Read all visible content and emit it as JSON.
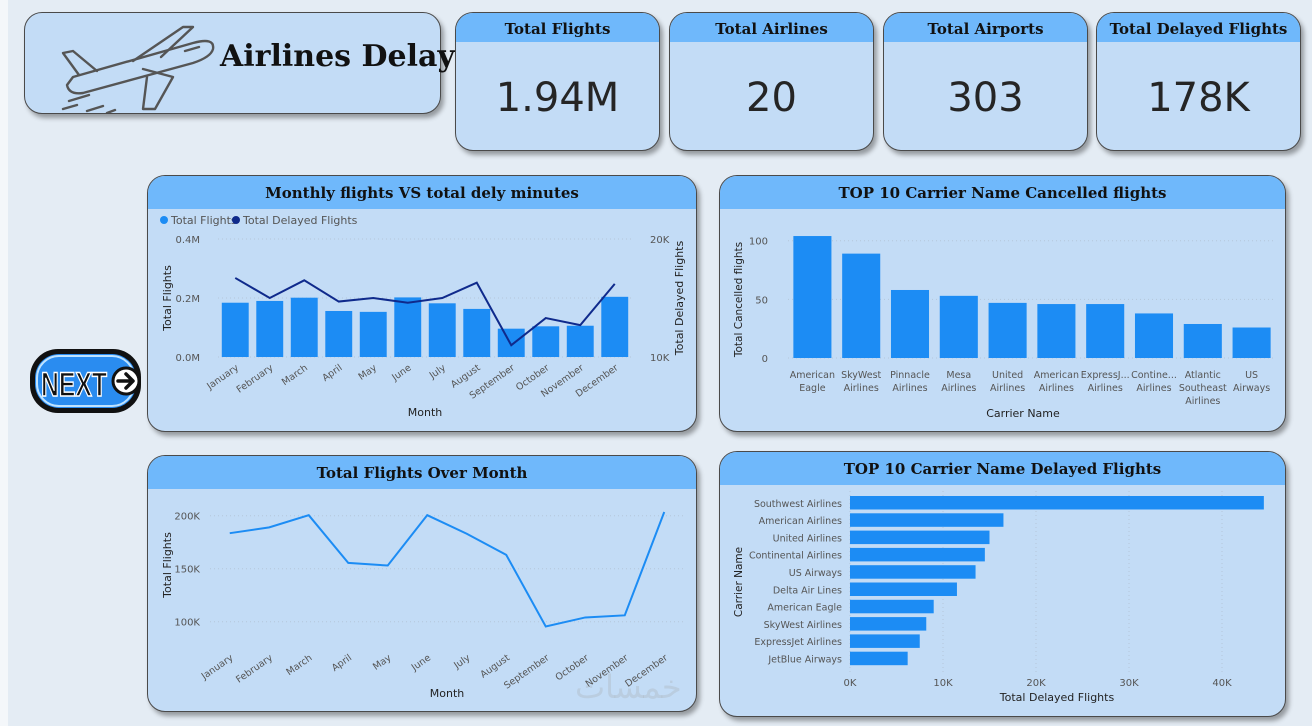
{
  "title": "Airlines Delay",
  "kpis": [
    {
      "label": "Total Flights",
      "value": "1.94M"
    },
    {
      "label": "Total Airlines",
      "value": "20"
    },
    {
      "label": "Total Airports",
      "value": "303"
    },
    {
      "label": "Total Delayed Flights",
      "value": "178K"
    }
  ],
  "next_button": {
    "label": "NEXT"
  },
  "watermark": "خمسات",
  "chart_data": [
    {
      "type": "bar",
      "title": "Monthly flights VS total dely minutes",
      "legend": [
        "Total Flights",
        "Total Delayed Flights"
      ],
      "categories": [
        "January",
        "February",
        "March",
        "April",
        "May",
        "June",
        "July",
        "August",
        "September",
        "October",
        "November",
        "December"
      ],
      "series": [
        {
          "name": "Total Flights",
          "type": "bar",
          "values": [
            184000,
            190000,
            201000,
            156000,
            153000,
            202000,
            182000,
            163000,
            96000,
            104000,
            106000,
            204000
          ]
        },
        {
          "name": "Total Delayed Flights",
          "type": "line",
          "values": [
            16700,
            15000,
            16500,
            14700,
            15000,
            14600,
            15000,
            16300,
            11000,
            13300,
            12700,
            16200
          ]
        }
      ],
      "xlabel": "Month",
      "ylabel": "Total Flights",
      "y2label": "Total Delayed Flights",
      "ylim": [
        0,
        400000
      ],
      "y2lim": [
        10000,
        20000
      ],
      "yticks": [
        "0.0M",
        "0.2M",
        "0.4M"
      ],
      "y2ticks": [
        "10K",
        "20K"
      ]
    },
    {
      "type": "bar",
      "title": "TOP 10 Carrier Name Cancelled flights",
      "categories": [
        [
          "American",
          "Eagle"
        ],
        [
          "SkyWest",
          "Airlines"
        ],
        [
          "Pinnacle",
          "Airlines"
        ],
        [
          "Mesa",
          "Airlines"
        ],
        [
          "United",
          "Airlines"
        ],
        [
          "American",
          "Airlines"
        ],
        [
          "ExpressJ...",
          "Airlines"
        ],
        [
          "Contine...",
          "Airlines"
        ],
        [
          "Atlantic",
          "Southeast",
          "Airlines"
        ],
        [
          "US",
          "Airways"
        ]
      ],
      "values": [
        104,
        89,
        58,
        53,
        47,
        46,
        46,
        38,
        29,
        26
      ],
      "xlabel": "Carrier Name",
      "ylabel": "Total Cancelled flights",
      "ylim": [
        0,
        110
      ],
      "yticks": [
        "0",
        "50",
        "100"
      ]
    },
    {
      "type": "line",
      "title": "Total Flights Over Month",
      "categories": [
        "January",
        "February",
        "March",
        "April",
        "May",
        "June",
        "July",
        "August",
        "September",
        "October",
        "November",
        "December"
      ],
      "values": [
        183500,
        189000,
        200500,
        155500,
        153000,
        200500,
        183000,
        163000,
        95500,
        104000,
        106000,
        203500
      ],
      "xlabel": "Month",
      "ylabel": "Total Flights",
      "ylim": [
        80000,
        210000
      ],
      "yticks": [
        "100K",
        "150K",
        "200K"
      ]
    },
    {
      "type": "bar",
      "orientation": "horizontal",
      "title": "TOP 10  Carrier Name Delayed Flights",
      "categories": [
        "Southwest Airlines",
        "American Airlines",
        "United Airlines",
        "Continental Airlines",
        "US Airways",
        "Delta Air Lines",
        "American Eagle",
        "SkyWest Airlines",
        "ExpressJet Airlines",
        "JetBlue Airways"
      ],
      "values": [
        44500,
        16500,
        15000,
        14500,
        13500,
        11500,
        9000,
        8200,
        7500,
        6200
      ],
      "xlabel": "Total Delayed Flights",
      "ylabel": "Carrier Name",
      "xlim": [
        0,
        45000
      ],
      "xticks": [
        "0K",
        "10K",
        "20K",
        "30K",
        "40K"
      ]
    }
  ]
}
